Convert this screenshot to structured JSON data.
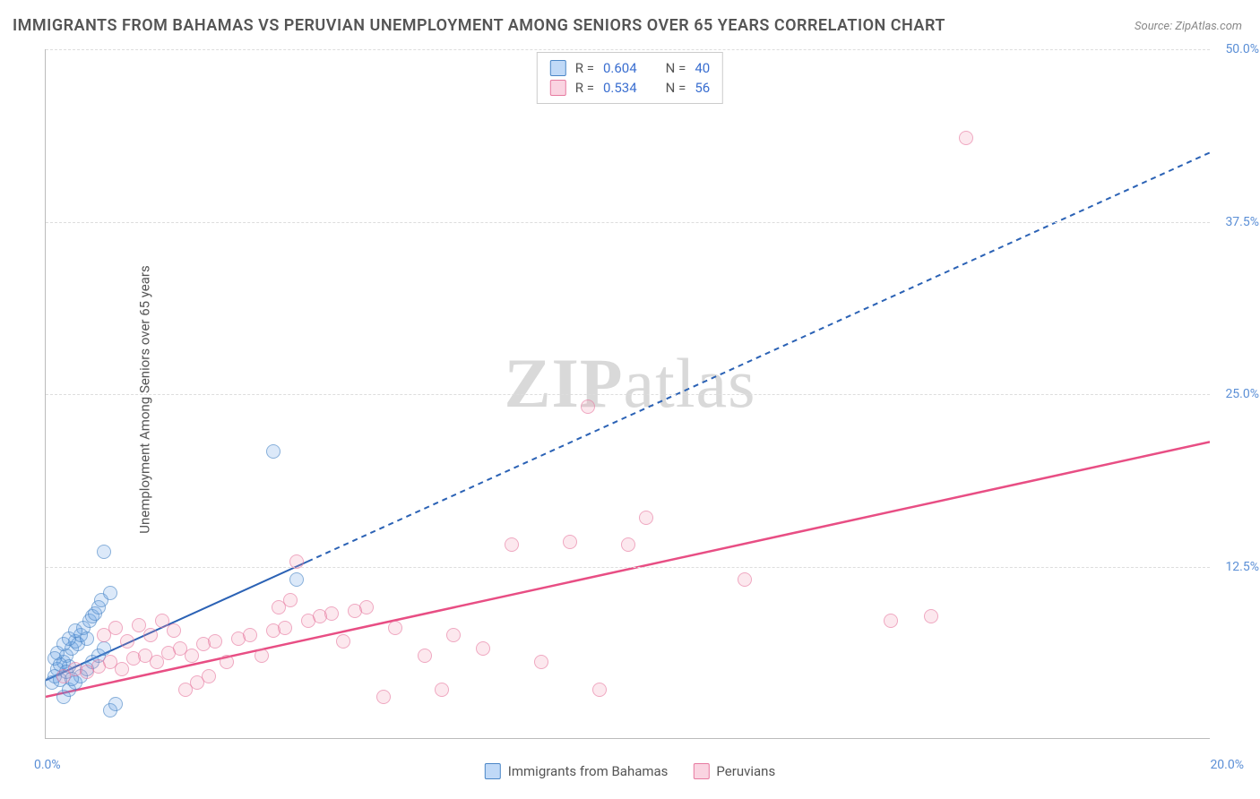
{
  "title": "IMMIGRANTS FROM BAHAMAS VS PERUVIAN UNEMPLOYMENT AMONG SENIORS OVER 65 YEARS CORRELATION CHART",
  "source": "Source: ZipAtlas.com",
  "y_axis_label": "Unemployment Among Seniors over 65 years",
  "watermark_bold": "ZIP",
  "watermark_rest": "atlas",
  "chart": {
    "type": "scatter",
    "xlim": [
      0,
      20
    ],
    "ylim": [
      0,
      50
    ],
    "x_tick_labels": {
      "min": "0.0%",
      "max": "20.0%"
    },
    "y_ticks": [
      12.5,
      25.0,
      37.5,
      50.0
    ],
    "y_tick_labels": [
      "12.5%",
      "25.0%",
      "37.5%",
      "50.0%"
    ],
    "grid_color": "#dddddd",
    "axis_color": "#bbbbbb",
    "background_color": "#ffffff",
    "series": [
      {
        "name": "Immigrants from Bahamas",
        "key": "blue",
        "color_fill": "rgba(100,160,230,0.35)",
        "color_border": "#4a86c7",
        "r_value": "0.604",
        "n_value": "40",
        "trend": {
          "x1": 0,
          "y1": 4.2,
          "x2": 20,
          "y2": 42.5,
          "solid_until_x": 4.5,
          "color": "#2b62b5",
          "width": 2
        },
        "points": [
          [
            0.1,
            4.0
          ],
          [
            0.15,
            4.5
          ],
          [
            0.2,
            5.0
          ],
          [
            0.25,
            4.2
          ],
          [
            0.3,
            5.5
          ],
          [
            0.35,
            6.0
          ],
          [
            0.4,
            5.2
          ],
          [
            0.45,
            6.5
          ],
          [
            0.5,
            7.0
          ],
          [
            0.55,
            6.8
          ],
          [
            0.6,
            7.5
          ],
          [
            0.65,
            8.0
          ],
          [
            0.7,
            7.2
          ],
          [
            0.75,
            8.5
          ],
          [
            0.8,
            8.8
          ],
          [
            0.85,
            9.0
          ],
          [
            0.9,
            9.5
          ],
          [
            0.95,
            10.0
          ],
          [
            1.0,
            13.5
          ],
          [
            1.1,
            10.5
          ],
          [
            0.3,
            3.0
          ],
          [
            0.4,
            3.5
          ],
          [
            0.5,
            4.0
          ],
          [
            0.6,
            4.5
          ],
          [
            0.7,
            5.0
          ],
          [
            0.8,
            5.5
          ],
          [
            0.9,
            6.0
          ],
          [
            1.0,
            6.5
          ],
          [
            1.1,
            2.0
          ],
          [
            1.2,
            2.5
          ],
          [
            3.9,
            20.8
          ],
          [
            0.2,
            6.2
          ],
          [
            0.3,
            6.8
          ],
          [
            0.4,
            7.2
          ],
          [
            0.5,
            7.8
          ],
          [
            0.15,
            5.8
          ],
          [
            0.25,
            5.3
          ],
          [
            0.35,
            4.8
          ],
          [
            0.45,
            4.3
          ],
          [
            4.3,
            11.5
          ]
        ]
      },
      {
        "name": "Peruvians",
        "key": "pink",
        "color_fill": "rgba(240,140,170,0.30)",
        "color_border": "#e77aa0",
        "r_value": "0.534",
        "n_value": "56",
        "trend": {
          "x1": 0,
          "y1": 3.0,
          "x2": 20,
          "y2": 21.5,
          "solid_until_x": 20,
          "color": "#e84e84",
          "width": 2.5
        },
        "points": [
          [
            0.3,
            4.5
          ],
          [
            0.5,
            5.0
          ],
          [
            0.7,
            4.8
          ],
          [
            0.9,
            5.2
          ],
          [
            1.1,
            5.5
          ],
          [
            1.3,
            5.0
          ],
          [
            1.5,
            5.8
          ],
          [
            1.7,
            6.0
          ],
          [
            1.9,
            5.5
          ],
          [
            2.1,
            6.2
          ],
          [
            2.3,
            6.5
          ],
          [
            2.5,
            6.0
          ],
          [
            2.7,
            6.8
          ],
          [
            2.9,
            7.0
          ],
          [
            3.1,
            5.5
          ],
          [
            3.3,
            7.2
          ],
          [
            3.5,
            7.5
          ],
          [
            3.7,
            6.0
          ],
          [
            3.9,
            7.8
          ],
          [
            4.1,
            8.0
          ],
          [
            4.3,
            12.8
          ],
          [
            4.5,
            8.5
          ],
          [
            4.7,
            8.8
          ],
          [
            4.9,
            9.0
          ],
          [
            5.1,
            7.0
          ],
          [
            5.3,
            9.2
          ],
          [
            5.5,
            9.5
          ],
          [
            5.8,
            3.0
          ],
          [
            6.0,
            8.0
          ],
          [
            6.5,
            6.0
          ],
          [
            6.8,
            3.5
          ],
          [
            7.0,
            7.5
          ],
          [
            7.5,
            6.5
          ],
          [
            8.0,
            14.0
          ],
          [
            8.5,
            5.5
          ],
          [
            9.0,
            14.2
          ],
          [
            9.3,
            24.0
          ],
          [
            9.5,
            3.5
          ],
          [
            10.0,
            14.0
          ],
          [
            10.3,
            16.0
          ],
          [
            14.5,
            8.5
          ],
          [
            15.2,
            8.8
          ],
          [
            12.0,
            11.5
          ],
          [
            15.8,
            43.5
          ],
          [
            1.0,
            7.5
          ],
          [
            1.2,
            8.0
          ],
          [
            1.4,
            7.0
          ],
          [
            1.6,
            8.2
          ],
          [
            1.8,
            7.5
          ],
          [
            2.0,
            8.5
          ],
          [
            2.2,
            7.8
          ],
          [
            2.4,
            3.5
          ],
          [
            2.6,
            4.0
          ],
          [
            2.8,
            4.5
          ],
          [
            4.0,
            9.5
          ],
          [
            4.2,
            10.0
          ]
        ]
      }
    ]
  },
  "legend_top": {
    "r_label": "R =",
    "n_label": "N ="
  },
  "legend_bottom": [
    {
      "key": "blue",
      "label": "Immigrants from Bahamas"
    },
    {
      "key": "pink",
      "label": "Peruvians"
    }
  ]
}
